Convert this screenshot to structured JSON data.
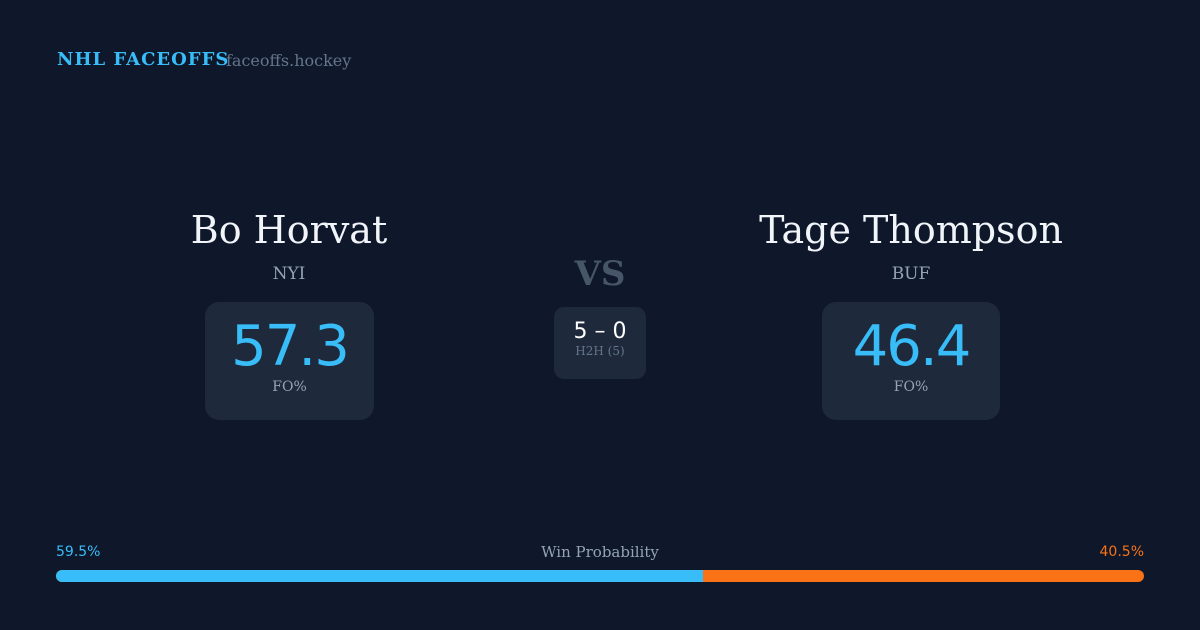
{
  "brand": {
    "title": "NHL FACEOFFS",
    "site": "faceoffs.hockey"
  },
  "left": {
    "name": "Bo Horvat",
    "team": "NYI",
    "value": "57.3",
    "label": "FO%"
  },
  "right": {
    "name": "Tage Thompson",
    "team": "BUF",
    "value": "46.4",
    "label": "FO%"
  },
  "vs": "VS",
  "h2h": {
    "score": "5 – 0",
    "label": "H2H (5)"
  },
  "win_probability": {
    "label": "Win Probability",
    "left_pct": "59.5%",
    "right_pct": "40.5%",
    "left_value": 59.5,
    "left_color": "#38bdf8",
    "right_color": "#f97316"
  }
}
